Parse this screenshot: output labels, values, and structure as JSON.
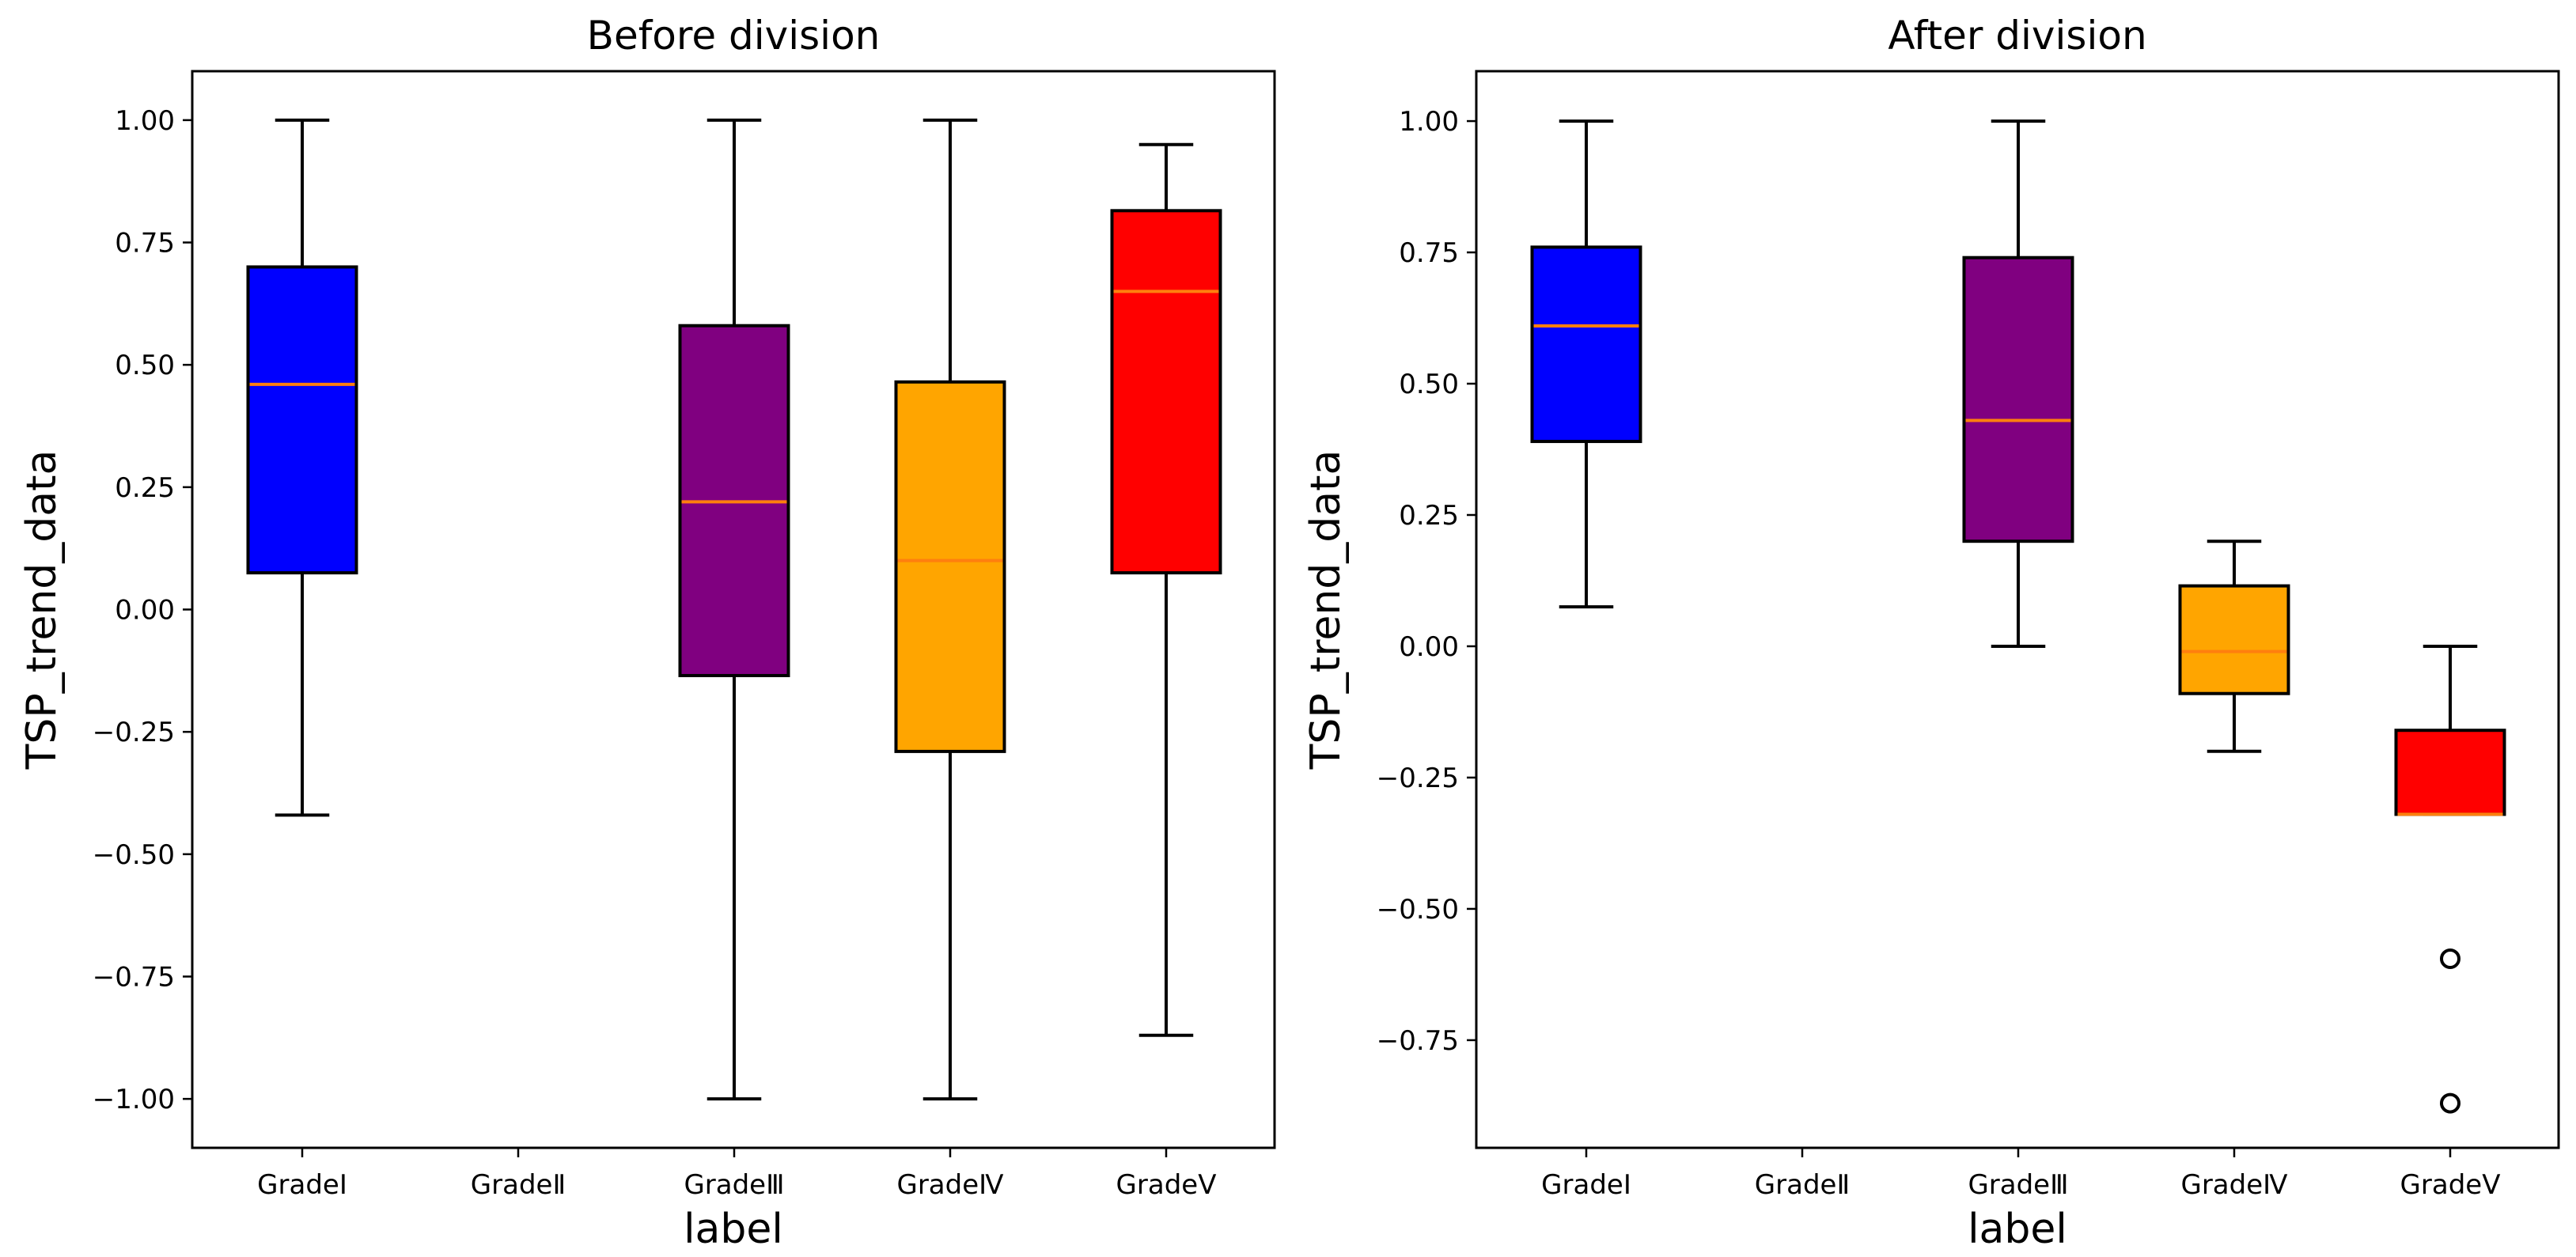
{
  "figure": {
    "background": "#ffffff"
  },
  "chart_data": [
    {
      "type": "boxplot",
      "title": "Before division",
      "xlabel": "label",
      "ylabel": "TSP_trend_data",
      "categories": [
        "GradeⅠ",
        "GradeⅡ",
        "GradeⅢ",
        "GradeⅣ",
        "GradeⅤ"
      ],
      "ylim": [
        -1.1,
        1.1
      ],
      "yticks": [
        1.0,
        0.75,
        0.5,
        0.25,
        0.0,
        -0.25,
        -0.5,
        -0.75,
        -1.0
      ],
      "ytick_labels": [
        "1.00",
        "0.75",
        "0.50",
        "0.25",
        "0.00",
        "−0.25",
        "−0.50",
        "−0.75",
        "−1.00"
      ],
      "grid": false,
      "median_color": "#ff7f0e",
      "boxes": [
        {
          "label": "GradeⅠ",
          "color": "#0000ff",
          "whislo": -0.42,
          "q1": 0.075,
          "med": 0.46,
          "q3": 0.7,
          "whishi": 1.0,
          "fliers": []
        },
        {
          "label": "GradeⅡ",
          "color": null,
          "whislo": null,
          "q1": null,
          "med": null,
          "q3": null,
          "whishi": null,
          "fliers": []
        },
        {
          "label": "GradeⅢ",
          "color": "#800080",
          "whislo": -1.0,
          "q1": -0.135,
          "med": 0.22,
          "q3": 0.58,
          "whishi": 1.0,
          "fliers": []
        },
        {
          "label": "GradeⅣ",
          "color": "#ffa500",
          "whislo": -1.0,
          "q1": -0.29,
          "med": 0.1,
          "q3": 0.465,
          "whishi": 1.0,
          "fliers": []
        },
        {
          "label": "GradeⅤ",
          "color": "#ff0000",
          "whislo": -0.87,
          "q1": 0.075,
          "med": 0.65,
          "q3": 0.815,
          "whishi": 0.95,
          "fliers": []
        }
      ]
    },
    {
      "type": "boxplot",
      "title": "After division",
      "xlabel": "label",
      "ylabel": "TSP_trend_data",
      "categories": [
        "GradeⅠ",
        "GradeⅡ",
        "GradeⅢ",
        "GradeⅣ",
        "GradeⅤ"
      ],
      "ylim": [
        -0.955,
        1.095
      ],
      "yticks": [
        1.0,
        0.75,
        0.5,
        0.25,
        0.0,
        -0.25,
        -0.5,
        -0.75
      ],
      "ytick_labels": [
        "1.00",
        "0.75",
        "0.50",
        "0.25",
        "0.00",
        "−0.25",
        "−0.50",
        "−0.75"
      ],
      "grid": false,
      "median_color": "#ff7f0e",
      "boxes": [
        {
          "label": "GradeⅠ",
          "color": "#0000ff",
          "whislo": 0.075,
          "q1": 0.39,
          "med": 0.61,
          "q3": 0.76,
          "whishi": 1.0,
          "fliers": []
        },
        {
          "label": "GradeⅡ",
          "color": null,
          "whislo": null,
          "q1": null,
          "med": null,
          "q3": null,
          "whishi": null,
          "fliers": []
        },
        {
          "label": "GradeⅢ",
          "color": "#800080",
          "whislo": 0.0,
          "q1": 0.2,
          "med": 0.43,
          "q3": 0.74,
          "whishi": 1.0,
          "fliers": []
        },
        {
          "label": "GradeⅣ",
          "color": "#ffa500",
          "whislo": -0.2,
          "q1": -0.09,
          "med": -0.01,
          "q3": 0.115,
          "whishi": 0.2,
          "fliers": []
        },
        {
          "label": "GradeⅤ",
          "color": "#ff0000",
          "whislo": -0.32,
          "q1": -0.32,
          "med": -0.32,
          "q3": -0.16,
          "whishi": 0.0,
          "fliers": [
            -0.595,
            -0.87
          ]
        }
      ]
    }
  ]
}
